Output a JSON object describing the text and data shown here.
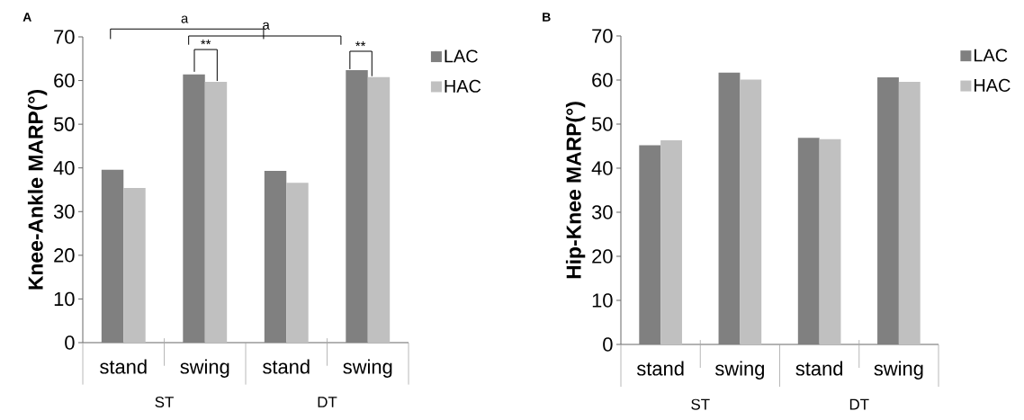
{
  "chart_data": [
    {
      "type": "bar",
      "title": "A",
      "ylabel": "Knee-Ankle MARP(°)",
      "categories": [
        "stand",
        "swing",
        "stand",
        "swing"
      ],
      "series": [
        {
          "name": "LAC",
          "color": "#808080",
          "values": [
            39.6,
            61.4,
            39.3,
            62.4
          ]
        },
        {
          "name": "HAC",
          "color": "#c0c0c0",
          "values": [
            35.4,
            59.7,
            36.6,
            60.8
          ]
        }
      ],
      "ylim": [
        0,
        70
      ],
      "yticks": [
        0,
        10,
        20,
        30,
        40,
        50,
        60,
        70
      ],
      "legend": "right",
      "annotations": [
        "ST",
        "DT",
        "a",
        "a",
        "**",
        "**"
      ]
    },
    {
      "type": "bar",
      "title": "B",
      "ylabel": "Hip-Knee MARP(°)",
      "categories": [
        "stand",
        "swing",
        "stand",
        "swing"
      ],
      "series": [
        {
          "name": "LAC",
          "color": "#808080",
          "values": [
            45.2,
            61.7,
            46.9,
            60.6
          ]
        },
        {
          "name": "HAC",
          "color": "#c0c0c0",
          "values": [
            46.3,
            60.1,
            46.6,
            59.6
          ]
        }
      ],
      "ylim": [
        0,
        70
      ],
      "yticks": [
        0,
        10,
        20,
        30,
        40,
        50,
        60,
        70
      ],
      "legend": "right",
      "annotations": [
        "ST",
        "DT"
      ]
    }
  ]
}
